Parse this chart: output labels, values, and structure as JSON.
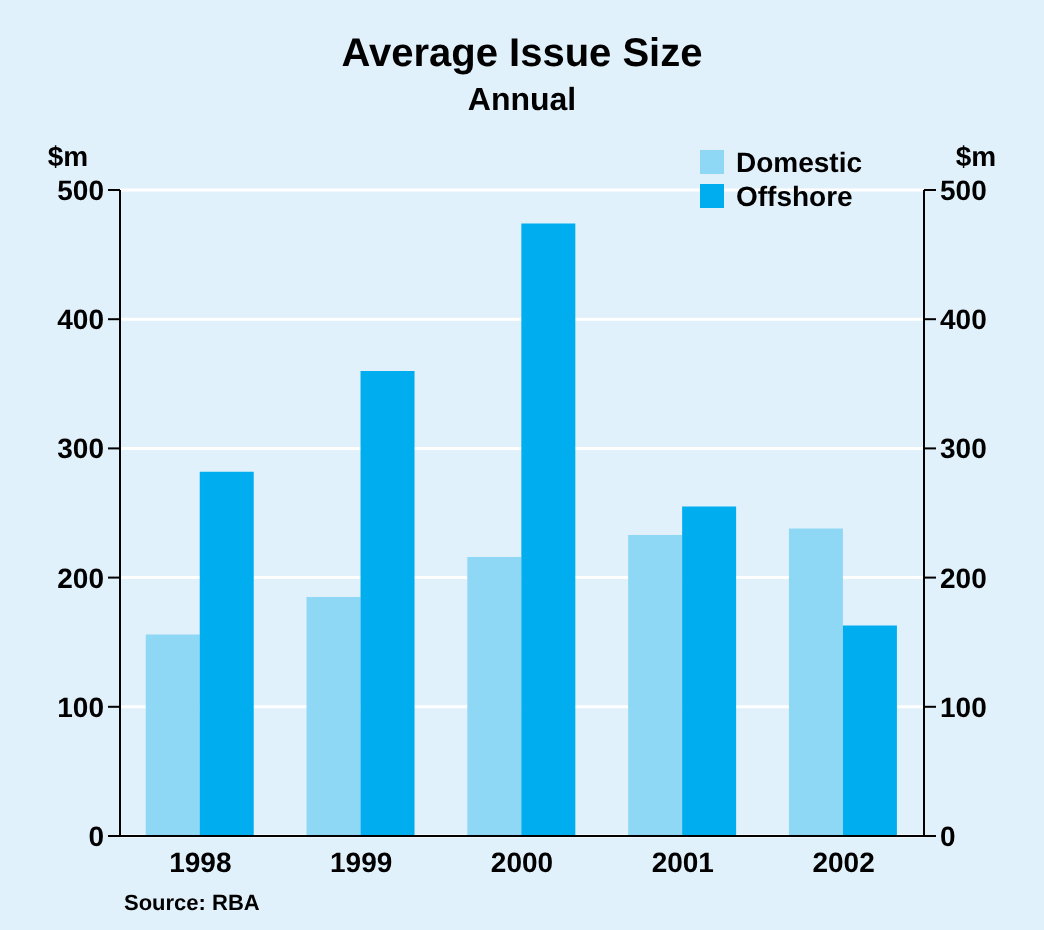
{
  "chart_data": {
    "type": "bar",
    "title": "Average Issue Size",
    "subtitle": "Annual",
    "ylabel": "$m",
    "y2label": "$m",
    "categories": [
      "1998",
      "1999",
      "2000",
      "2001",
      "2002"
    ],
    "series": [
      {
        "name": "Domestic",
        "color": "#8fd8f5",
        "values": [
          156,
          185,
          216,
          233,
          238
        ]
      },
      {
        "name": "Offshore",
        "color": "#00aeef",
        "values": [
          282,
          360,
          474,
          255,
          163
        ]
      }
    ],
    "ylim": [
      0,
      500
    ],
    "yticks": [
      0,
      100,
      200,
      300,
      400,
      500
    ],
    "y2lim": [
      0,
      500
    ],
    "y2ticks": [
      0,
      100,
      200,
      300,
      400,
      500
    ],
    "grid": "y",
    "legend": "top right",
    "annotations": [
      "Source: RBA"
    ]
  }
}
